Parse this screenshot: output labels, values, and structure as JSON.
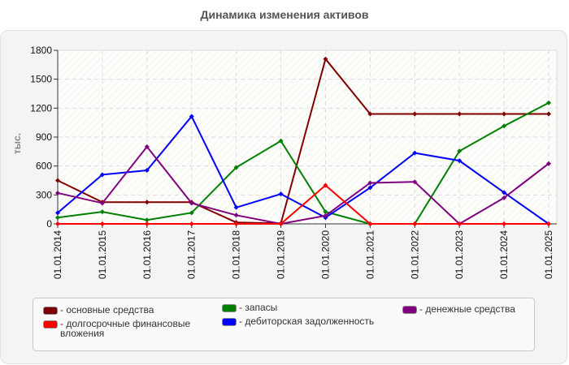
{
  "chart_data": {
    "type": "line",
    "title": "Динамика изменения активов",
    "xlabel": "",
    "ylabel": "тыс.",
    "ylim": [
      0,
      1800
    ],
    "yticks": [
      0,
      300,
      600,
      900,
      1200,
      1500,
      1800
    ],
    "grid": true,
    "legend_position": "bottom",
    "categories": [
      "01.01.2014",
      "01.01.2015",
      "01.01.2016",
      "01.01.2017",
      "01.01.2018",
      "01.01.2019",
      "01.01.2020",
      "01.01.2021",
      "01.01.2022",
      "01.01.2023",
      "01.01.2024",
      "01.01.2025"
    ],
    "series": [
      {
        "name": "основные средства",
        "color": "#800000",
        "values": [
          450,
          225,
          225,
          225,
          15,
          5,
          1710,
          1140,
          1140,
          1140,
          1140,
          1140
        ]
      },
      {
        "name": "долгосрочные финансовые вложения",
        "color": "#ff0000",
        "values": [
          0,
          0,
          0,
          0,
          0,
          0,
          400,
          0,
          0,
          0,
          0,
          0
        ]
      },
      {
        "name": "запасы",
        "color": "#008000",
        "values": [
          65,
          125,
          40,
          115,
          585,
          860,
          125,
          0,
          0,
          755,
          1015,
          1255
        ]
      },
      {
        "name": "дебиторская задолженность",
        "color": "#0000ff",
        "values": [
          115,
          510,
          555,
          1115,
          170,
          310,
          65,
          375,
          735,
          655,
          325,
          0
        ]
      },
      {
        "name": "денежные средства",
        "color": "#800080",
        "values": [
          320,
          215,
          800,
          215,
          90,
          0,
          85,
          425,
          435,
          0,
          270,
          625
        ]
      }
    ]
  },
  "legend": [
    {
      "label": "- основные средства",
      "color": "#800000"
    },
    {
      "label": "- долгосрочные финансовые вложения",
      "color": "#ff0000"
    },
    {
      "label": "- запасы",
      "color": "#008000"
    },
    {
      "label": "- дебиторская задолженность",
      "color": "#0000ff"
    },
    {
      "label": "- денежные средства",
      "color": "#800080"
    }
  ]
}
